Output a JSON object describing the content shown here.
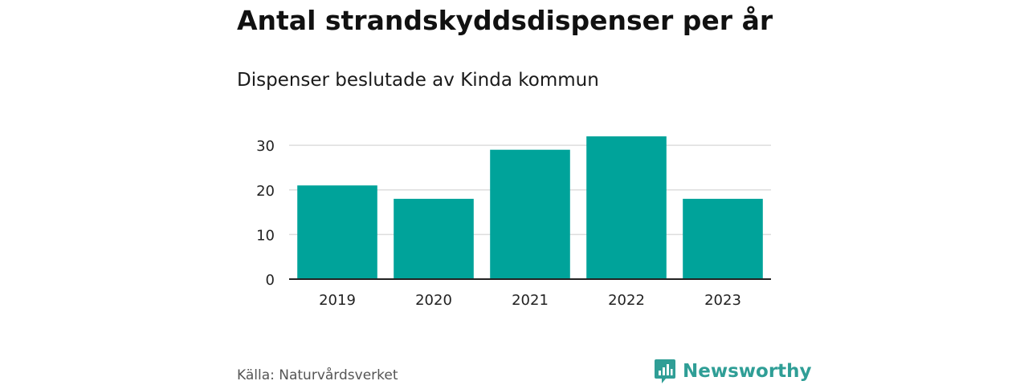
{
  "header": {
    "title": "Antal strandskyddsdispenser per år",
    "subtitle": "Dispenser beslutade av Kinda kommun"
  },
  "footer": {
    "source": "Källa: Naturvårdsverket",
    "brand": "Newsworthy"
  },
  "colors": {
    "bar": "#00a39a",
    "grid": "#dddddd",
    "axis": "#222222",
    "brand": "#2f9e96"
  },
  "chart_data": {
    "type": "bar",
    "title": "Antal strandskyddsdispenser per år",
    "subtitle": "Dispenser beslutade av Kinda kommun",
    "xlabel": "",
    "ylabel": "",
    "categories": [
      "2019",
      "2020",
      "2021",
      "2022",
      "2023"
    ],
    "values": [
      21,
      18,
      29,
      32,
      18
    ],
    "ylim": [
      0,
      32
    ],
    "yticks": [
      0,
      10,
      20,
      30
    ],
    "grid": true,
    "legend": "none"
  }
}
